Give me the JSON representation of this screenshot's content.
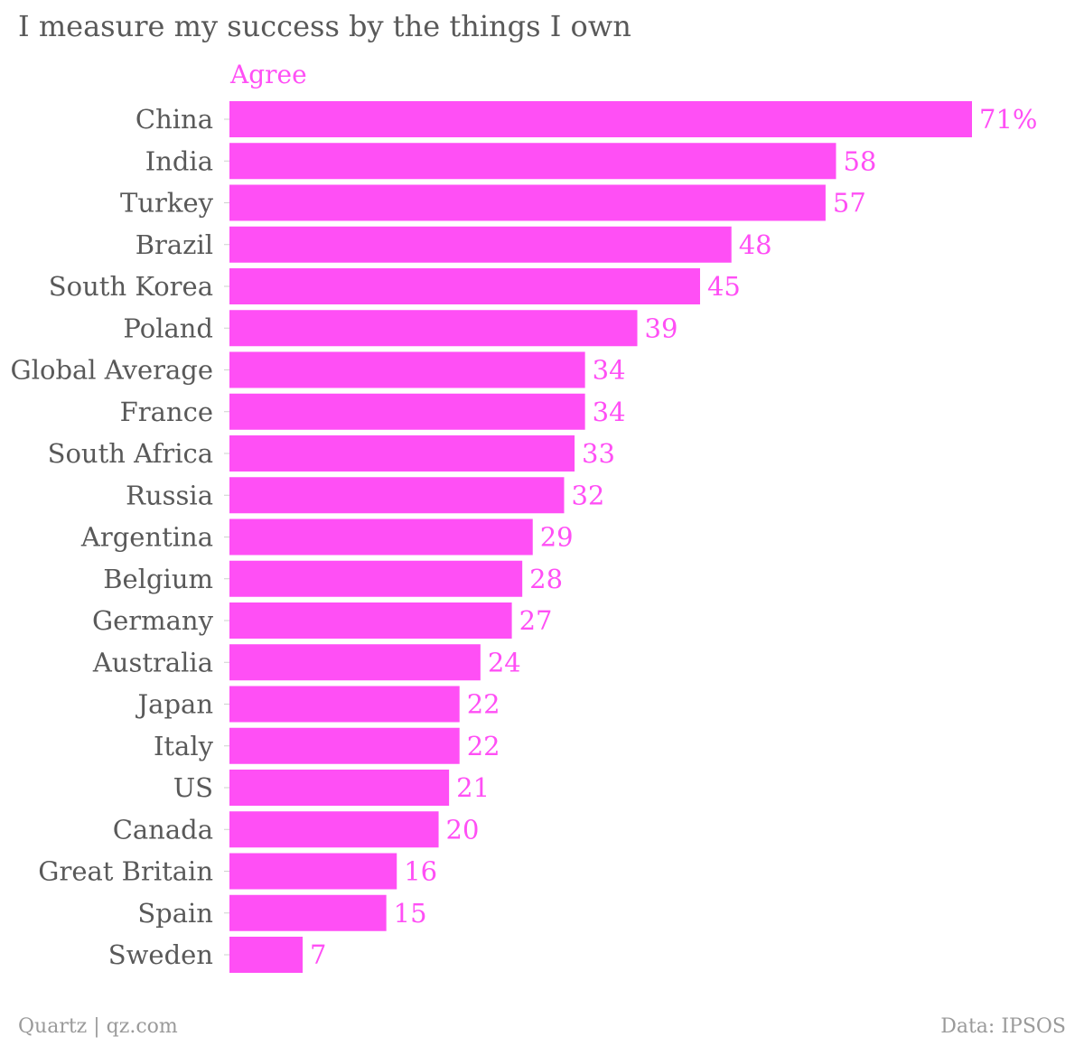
{
  "chart_data": {
    "type": "bar",
    "orientation": "horizontal",
    "title": "I measure my success by the things I own",
    "series": [
      {
        "name": "Agree",
        "color": "#ff4ff5",
        "values": [
          71,
          58,
          57,
          48,
          45,
          39,
          34,
          34,
          33,
          32,
          29,
          28,
          27,
          24,
          22,
          22,
          21,
          20,
          16,
          15,
          7
        ]
      }
    ],
    "categories": [
      "China",
      "India",
      "Turkey",
      "Brazil",
      "South Korea",
      "Poland",
      "Global Average",
      "France",
      "South Africa",
      "Russia",
      "Argentina",
      "Belgium",
      "Germany",
      "Australia",
      "Japan",
      "Italy",
      "US",
      "Canada",
      "Great Britain",
      "Spain",
      "Sweden"
    ],
    "value_labels": [
      "71%",
      "58",
      "57",
      "48",
      "45",
      "39",
      "34",
      "34",
      "33",
      "32",
      "29",
      "28",
      "27",
      "24",
      "22",
      "22",
      "21",
      "20",
      "16",
      "15",
      "7"
    ],
    "xlim": [
      0,
      71
    ],
    "grid": false,
    "legend": "top-left"
  },
  "footer": {
    "source_left": "Quartz | qz.com",
    "source_right": "Data: IPSOS"
  },
  "colors": {
    "bar": "#ff4ff5",
    "label_text": "#595959",
    "footer_text": "#9a9a9a"
  }
}
